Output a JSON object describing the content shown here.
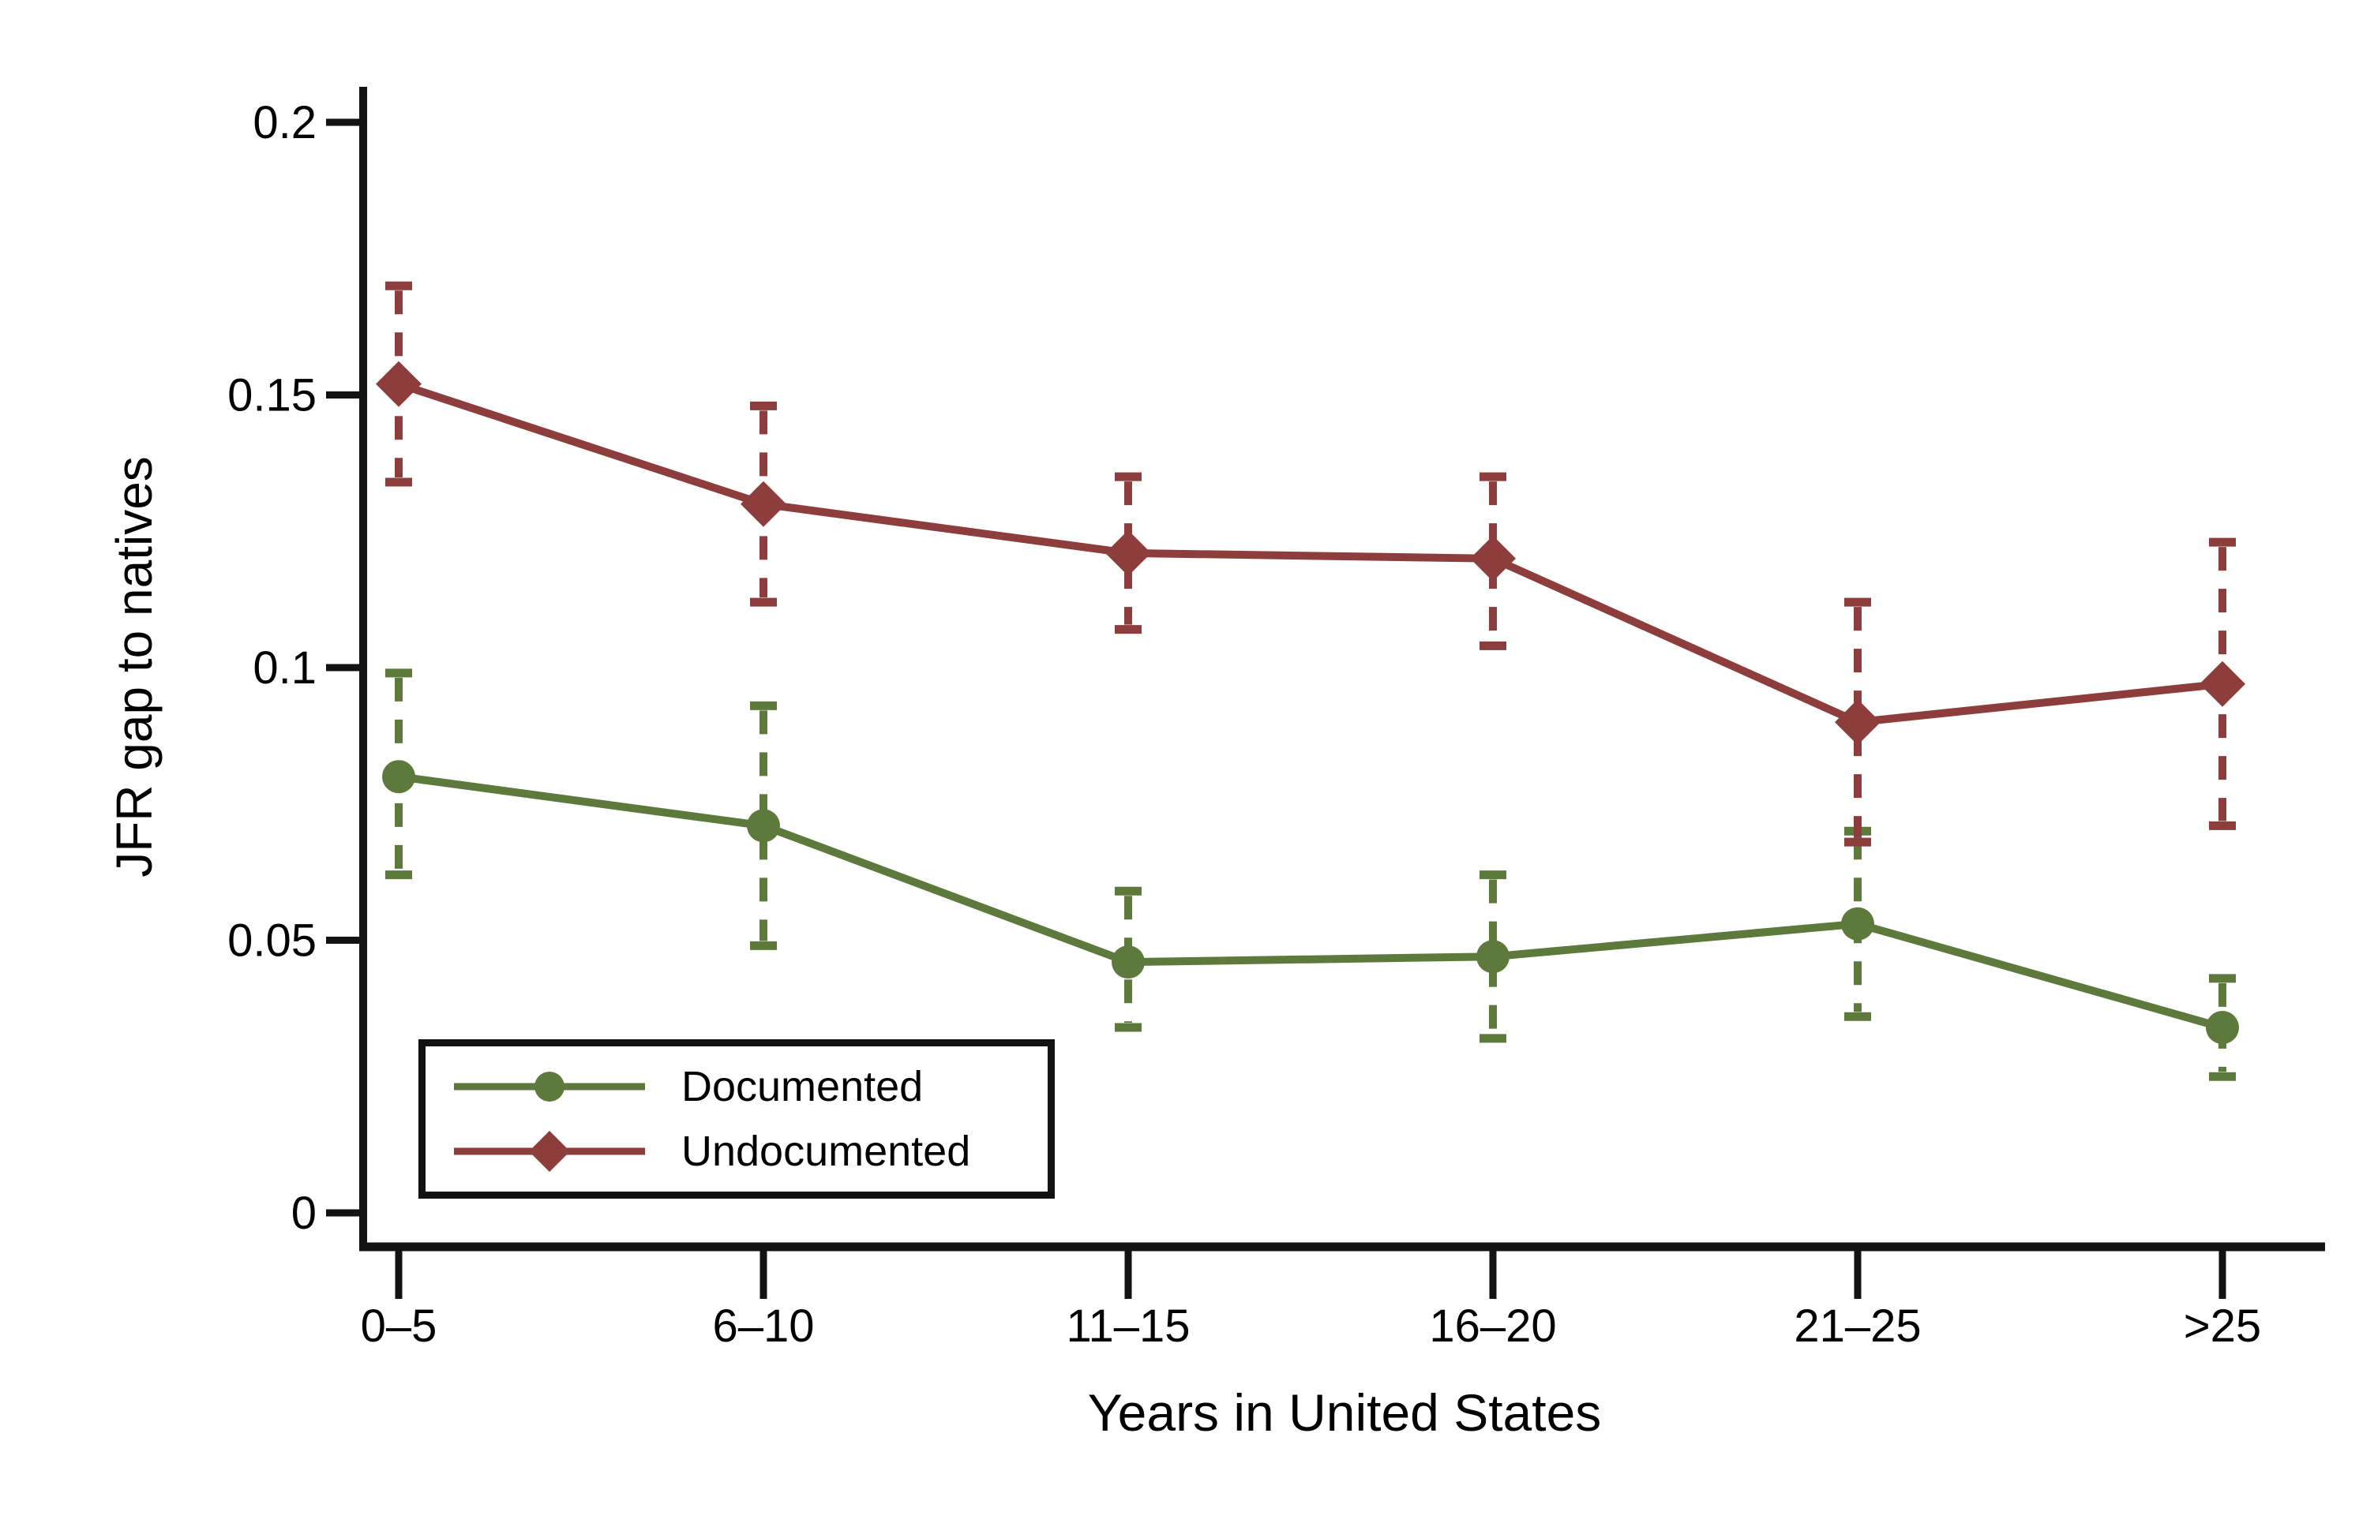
{
  "figure": {
    "background": "#ffffff",
    "axis_color": "#121212"
  },
  "chart_data": {
    "type": "line",
    "title": "",
    "xlabel": "Years in United States",
    "ylabel": "JFR gap to natives",
    "categories": [
      "0–5",
      "6–10",
      "11–15",
      "16–20",
      "21–25",
      ">25"
    ],
    "yticks": [
      0,
      0.05,
      0.1,
      0.15,
      0.2
    ],
    "ytick_labels": [
      "0",
      "0.05",
      "0.1",
      "0.15",
      "0.2"
    ],
    "ylim": [
      -0.006,
      0.207
    ],
    "grid": false,
    "legend_position": "inside-bottom-left",
    "error_bars": "95% CI, dashed with caps",
    "series": [
      {
        "name": "Documented",
        "marker": "circle",
        "line_style": "solid",
        "color": "#5d7a3c",
        "values": [
          0.08,
          0.071,
          0.046,
          0.047,
          0.053,
          0.034
        ],
        "ci_upper": [
          0.099,
          0.093,
          0.059,
          0.062,
          0.07,
          0.043
        ],
        "ci_lower": [
          0.062,
          0.049,
          0.034,
          0.032,
          0.036,
          0.025
        ]
      },
      {
        "name": "Undocumented",
        "marker": "diamond",
        "line_style": "solid",
        "color": "#8e3d3d",
        "values": [
          0.152,
          0.13,
          0.121,
          0.12,
          0.09,
          0.097
        ],
        "ci_upper": [
          0.17,
          0.148,
          0.135,
          0.135,
          0.112,
          0.123
        ],
        "ci_lower": [
          0.134,
          0.112,
          0.107,
          0.104,
          0.068,
          0.071
        ]
      }
    ]
  }
}
